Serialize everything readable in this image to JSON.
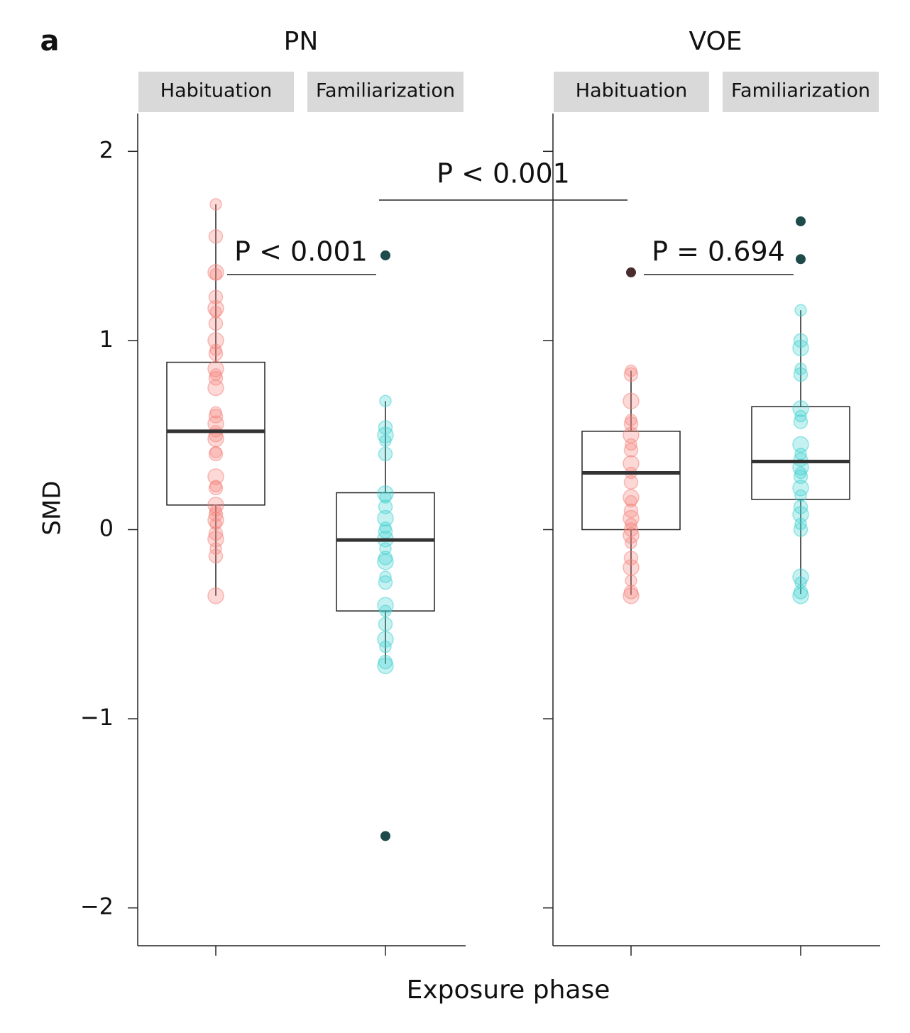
{
  "chart_data": {
    "type": "box",
    "panel_label": "a",
    "ylabel": "SMD",
    "xlabel": "Exposure phase",
    "ylim": [
      -2.2,
      2.2
    ],
    "yticks": [
      2,
      1,
      0,
      {
        "value": -1,
        "label": "−1"
      },
      {
        "value": -2,
        "label": "−2"
      }
    ],
    "panels": [
      {
        "title": "PN",
        "groups": [
          {
            "name": "Habituation",
            "color": "#f4827a",
            "outlier_color": "#3b2a2a",
            "whisker_low": -0.35,
            "q1": 0.13,
            "median": 0.52,
            "q3": 0.885,
            "whisker_high": 1.72,
            "points": [
              1.72,
              1.55,
              1.36,
              1.35,
              1.23,
              1.17,
              1.15,
              1.09,
              1.0,
              0.95,
              0.93,
              0.85,
              0.82,
              0.8,
              0.75,
              0.62,
              0.6,
              0.56,
              0.52,
              0.5,
              0.48,
              0.41,
              0.4,
              0.28,
              0.23,
              0.22,
              0.13,
              0.1,
              0.08,
              0.05,
              0.03,
              -0.02,
              -0.05,
              -0.1,
              -0.14,
              -0.35
            ],
            "outliers": []
          },
          {
            "name": "Familiarization",
            "color": "#3fcfd0",
            "outlier_color": "#1f4a4c",
            "whisker_low": -0.71,
            "q1": -0.43,
            "median": -0.055,
            "q3": 0.195,
            "whisker_high": 0.68,
            "points": [
              0.68,
              0.54,
              0.5,
              0.47,
              0.4,
              0.19,
              0.17,
              0.12,
              0.06,
              0.01,
              -0.01,
              -0.05,
              -0.1,
              -0.15,
              -0.17,
              -0.25,
              -0.28,
              -0.4,
              -0.43,
              -0.5,
              -0.58,
              -0.62,
              -0.7,
              -0.72
            ],
            "outliers": [
              1.45,
              -1.62
            ]
          }
        ]
      },
      {
        "title": "VOE",
        "groups": [
          {
            "name": "Habituation",
            "color": "#f4827a",
            "outlier_color": "#4a2c2c",
            "whisker_low": -0.345,
            "q1": 0.0,
            "median": 0.3,
            "q3": 0.52,
            "whisker_high": 0.84,
            "points": [
              0.84,
              0.82,
              0.68,
              0.58,
              0.56,
              0.5,
              0.45,
              0.42,
              0.35,
              0.3,
              0.25,
              0.17,
              0.15,
              0.1,
              0.06,
              0.03,
              0.0,
              -0.03,
              -0.07,
              -0.15,
              -0.2,
              -0.27,
              -0.33,
              -0.35
            ],
            "outliers": [
              1.36
            ]
          },
          {
            "name": "Familiarization",
            "color": "#3fcfd0",
            "outlier_color": "#1f4a4c",
            "whisker_low": -0.34,
            "q1": 0.16,
            "median": 0.36,
            "q3": 0.65,
            "whisker_high": 1.16,
            "points": [
              1.16,
              1.0,
              0.96,
              0.85,
              0.82,
              0.64,
              0.6,
              0.57,
              0.45,
              0.4,
              0.37,
              0.33,
              0.3,
              0.28,
              0.22,
              0.18,
              0.12,
              0.08,
              0.03,
              0.0,
              -0.25,
              -0.28,
              -0.33,
              -0.35
            ],
            "outliers": [
              1.63,
              1.43
            ]
          }
        ]
      }
    ],
    "annotations": [
      "P < 0.001",
      "P < 0.001",
      "P = 0.694"
    ]
  }
}
